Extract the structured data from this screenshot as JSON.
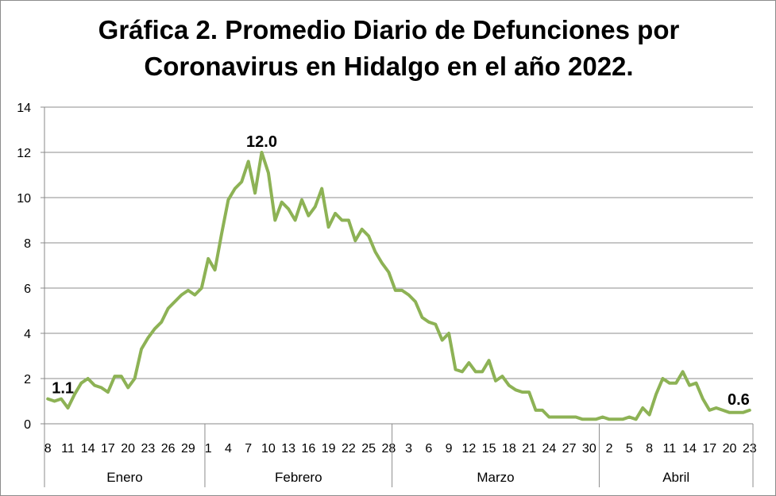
{
  "chart_data": {
    "type": "line",
    "title_line1": "Gráfica 2. Promedio Diario de Defunciones por",
    "title_line2": "Coronavirus en Hidalgo en el año 2022.",
    "xlabel": "",
    "ylabel": "",
    "ylim": [
      0,
      14
    ],
    "yticks": [
      0,
      2,
      4,
      6,
      8,
      10,
      12,
      14
    ],
    "grid": "horizontal",
    "legend": "none",
    "line_color": "#8db255",
    "start_date": "2022-01-08",
    "end_date": "2022-04-23",
    "months": [
      {
        "label": "Enero",
        "start": "2022-01-08",
        "end": "2022-01-31"
      },
      {
        "label": "Febrero",
        "start": "2022-02-01",
        "end": "2022-02-28"
      },
      {
        "label": "Marzo",
        "start": "2022-03-01",
        "end": "2022-03-31"
      },
      {
        "label": "Abril",
        "start": "2022-04-01",
        "end": "2022-04-23"
      }
    ],
    "x_tick_labels": [
      {
        "date": "2022-01-08",
        "label": "8"
      },
      {
        "date": "2022-01-11",
        "label": "11"
      },
      {
        "date": "2022-01-14",
        "label": "14"
      },
      {
        "date": "2022-01-17",
        "label": "17"
      },
      {
        "date": "2022-01-20",
        "label": "20"
      },
      {
        "date": "2022-01-23",
        "label": "23"
      },
      {
        "date": "2022-01-26",
        "label": "26"
      },
      {
        "date": "2022-01-29",
        "label": "29"
      },
      {
        "date": "2022-02-01",
        "label": "1"
      },
      {
        "date": "2022-02-04",
        "label": "4"
      },
      {
        "date": "2022-02-07",
        "label": "7"
      },
      {
        "date": "2022-02-10",
        "label": "10"
      },
      {
        "date": "2022-02-13",
        "label": "13"
      },
      {
        "date": "2022-02-16",
        "label": "16"
      },
      {
        "date": "2022-02-19",
        "label": "19"
      },
      {
        "date": "2022-02-22",
        "label": "22"
      },
      {
        "date": "2022-02-25",
        "label": "25"
      },
      {
        "date": "2022-02-28",
        "label": "28"
      },
      {
        "date": "2022-03-03",
        "label": "3"
      },
      {
        "date": "2022-03-06",
        "label": "6"
      },
      {
        "date": "2022-03-09",
        "label": "9"
      },
      {
        "date": "2022-03-12",
        "label": "12"
      },
      {
        "date": "2022-03-15",
        "label": "15"
      },
      {
        "date": "2022-03-18",
        "label": "18"
      },
      {
        "date": "2022-03-21",
        "label": "21"
      },
      {
        "date": "2022-03-24",
        "label": "24"
      },
      {
        "date": "2022-03-27",
        "label": "27"
      },
      {
        "date": "2022-03-30",
        "label": "30"
      },
      {
        "date": "2022-04-02",
        "label": "2"
      },
      {
        "date": "2022-04-05",
        "label": "5"
      },
      {
        "date": "2022-04-08",
        "label": "8"
      },
      {
        "date": "2022-04-11",
        "label": "11"
      },
      {
        "date": "2022-04-14",
        "label": "14"
      },
      {
        "date": "2022-04-17",
        "label": "17"
      },
      {
        "date": "2022-04-20",
        "label": "20"
      },
      {
        "date": "2022-04-23",
        "label": "23"
      }
    ],
    "values": [
      1.1,
      1.0,
      1.1,
      0.7,
      1.3,
      1.8,
      2.0,
      1.7,
      1.6,
      1.4,
      2.1,
      2.1,
      1.6,
      2.0,
      3.3,
      3.8,
      4.2,
      4.5,
      5.1,
      5.4,
      5.7,
      5.9,
      5.7,
      6.0,
      7.3,
      6.8,
      8.4,
      9.9,
      10.4,
      10.7,
      11.6,
      10.2,
      12.0,
      11.1,
      9.0,
      9.8,
      9.5,
      9.0,
      9.9,
      9.2,
      9.6,
      10.4,
      8.7,
      9.3,
      9.0,
      9.0,
      8.1,
      8.6,
      8.3,
      7.6,
      7.1,
      6.7,
      5.9,
      5.9,
      5.7,
      5.4,
      4.7,
      4.5,
      4.4,
      3.7,
      4.0,
      2.4,
      2.3,
      2.7,
      2.3,
      2.3,
      2.8,
      1.9,
      2.1,
      1.7,
      1.5,
      1.4,
      1.4,
      0.6,
      0.6,
      0.3,
      0.3,
      0.3,
      0.3,
      0.3,
      0.2,
      0.2,
      0.2,
      0.3,
      0.2,
      0.2,
      0.2,
      0.3,
      0.2,
      0.7,
      0.4,
      1.3,
      2.0,
      1.8,
      1.8,
      2.3,
      1.7,
      1.8,
      1.1,
      0.6,
      0.7,
      0.6,
      0.5,
      0.5,
      0.5,
      0.6
    ],
    "annotations": [
      {
        "date": "2022-01-08",
        "text": "1.1"
      },
      {
        "date": "2022-02-09",
        "text": "12.0"
      },
      {
        "date": "2022-04-23",
        "text": "0.6"
      }
    ]
  }
}
